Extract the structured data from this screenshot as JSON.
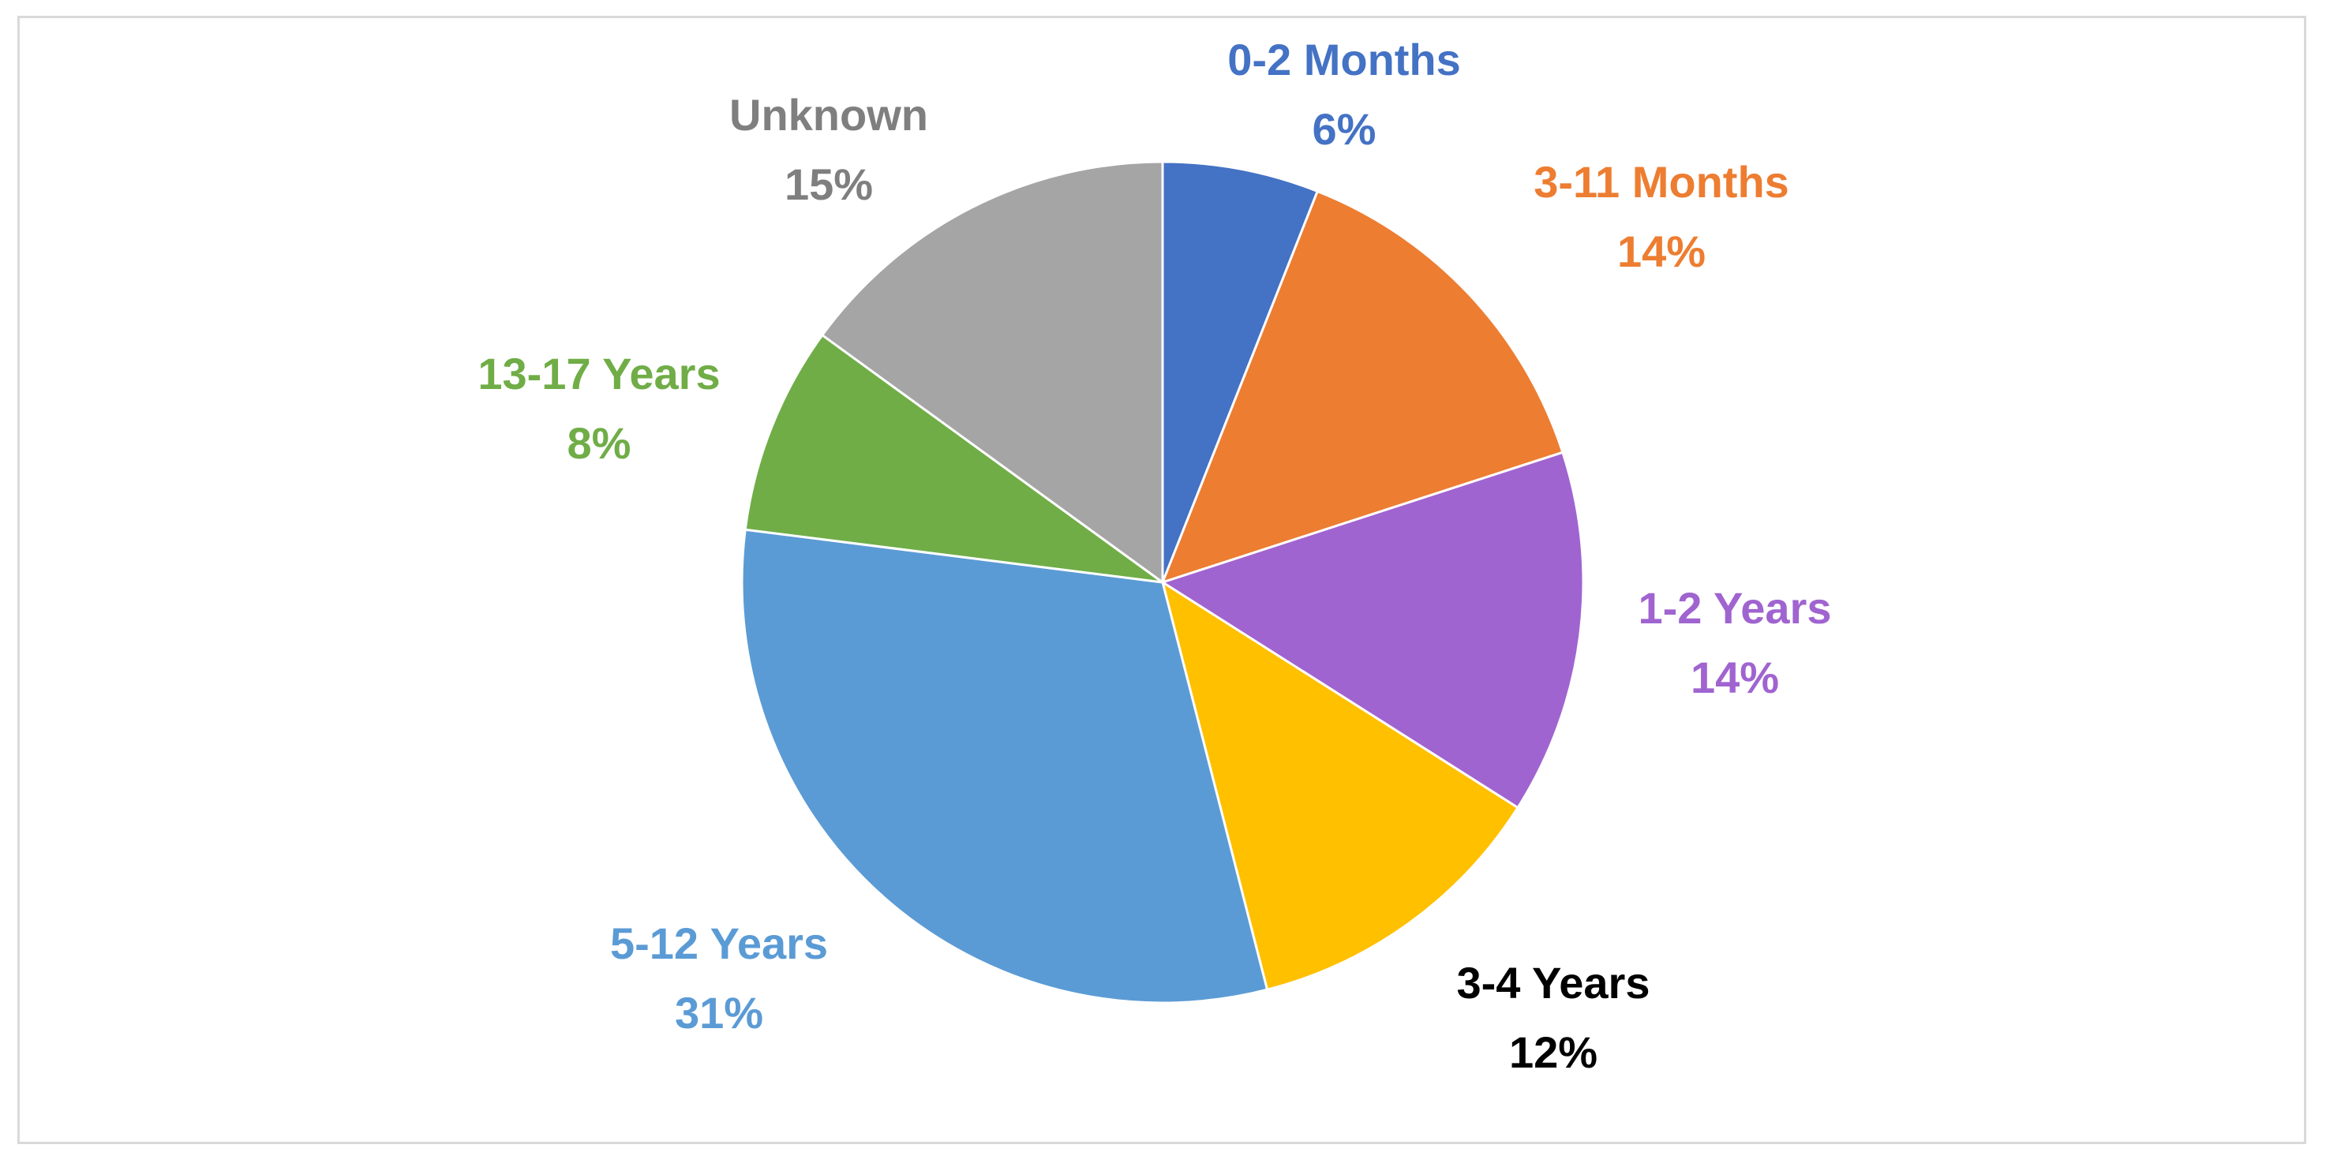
{
  "chart_data": {
    "type": "pie",
    "title": "",
    "start_angle_deg": 0,
    "direction": "clockwise",
    "slices": [
      {
        "label": "0-2 Months",
        "value": 6,
        "value_label": "6%",
        "color": "#4472c4",
        "label_color": "#4472c4"
      },
      {
        "label": "3-11 Months",
        "value": 14,
        "value_label": "14%",
        "color": "#ed7d31",
        "label_color": "#ed7d31"
      },
      {
        "label": "1-2 Years",
        "value": 14,
        "value_label": "14%",
        "color": "#a064d0",
        "label_color": "#a064d0"
      },
      {
        "label": "3-4 Years",
        "value": 12,
        "value_label": "12%",
        "color": "#ffc000",
        "label_color": "#000000"
      },
      {
        "label": "5-12 Years",
        "value": 31,
        "value_label": "31%",
        "color": "#5b9bd5",
        "label_color": "#5b9bd5"
      },
      {
        "label": "13-17 Years",
        "value": 8,
        "value_label": "8%",
        "color": "#70ad47",
        "label_color": "#70ad47"
      },
      {
        "label": "Unknown",
        "value": 15,
        "value_label": "15%",
        "color": "#a5a5a5",
        "label_color": "#7f7f7f"
      }
    ],
    "legend": "none",
    "data_labels": "outside"
  }
}
